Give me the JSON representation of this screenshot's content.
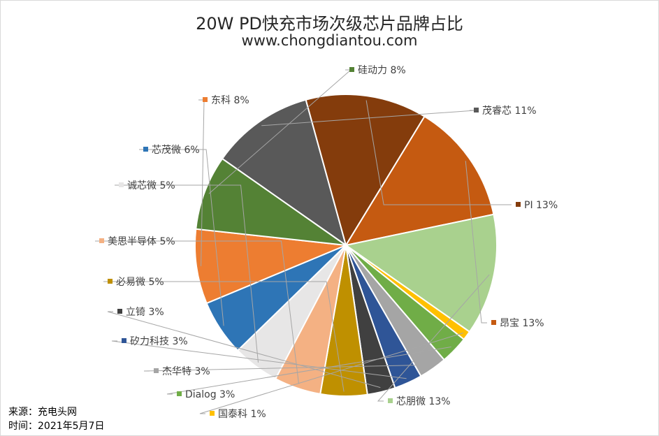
{
  "title": "20W PD快充市场次级芯片品牌占比",
  "subtitle": "www.chongdiantou.com",
  "footer": {
    "source": "来源：充电头网",
    "date": "时间：2021年5月7日"
  },
  "chart_data": {
    "type": "pie",
    "title": "20W PD快充市场次级芯片品牌占比",
    "subtitle": "www.chongdiantou.com",
    "unit": "%",
    "slices": [
      {
        "label": "茂睿芯",
        "value": 11,
        "color": "#595959"
      },
      {
        "label": "PI",
        "value": 13,
        "color": "#843C0C"
      },
      {
        "label": "昂宝",
        "value": 13,
        "color": "#C55A11"
      },
      {
        "label": "芯朋微",
        "value": 13,
        "color": "#A9D18E"
      },
      {
        "label": "国泰科",
        "value": 1,
        "color": "#FFC000"
      },
      {
        "label": "Dialog",
        "value": 3,
        "color": "#70AD47"
      },
      {
        "label": "杰华特",
        "value": 3,
        "color": "#A5A5A5"
      },
      {
        "label": "矽力科技",
        "value": 3,
        "color": "#2F5597"
      },
      {
        "label": "立锜",
        "value": 3,
        "color": "#404040"
      },
      {
        "label": "必易微",
        "value": 5,
        "color": "#BF9000"
      },
      {
        "label": "美思半导体",
        "value": 5,
        "color": "#F4B183"
      },
      {
        "label": "诚芯微",
        "value": 5,
        "color": "#E7E6E6"
      },
      {
        "label": "芯茂微",
        "value": 6,
        "color": "#2E75B6"
      },
      {
        "label": "东科",
        "value": 8,
        "color": "#ED7D31"
      },
      {
        "label": "硅动力",
        "value": 8,
        "color": "#548235"
      }
    ],
    "label_format": "{label} {value}%",
    "legend": "data labels with leader lines"
  }
}
